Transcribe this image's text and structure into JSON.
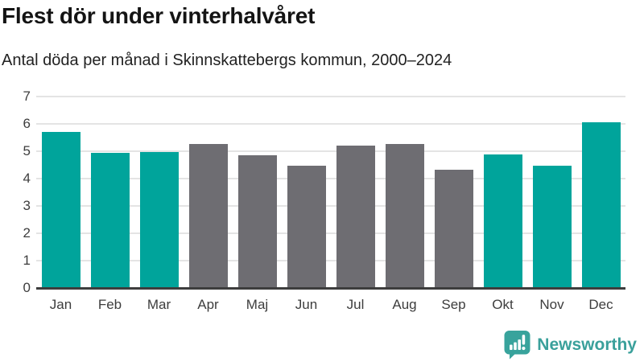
{
  "chart_data": {
    "type": "bar",
    "title": "Flest dör under vinterhalvåret",
    "subtitle": "Antal döda per månad i Skinnskattebergs kommun, 2000–2024",
    "categories": [
      "Jan",
      "Feb",
      "Mar",
      "Apr",
      "Maj",
      "Jun",
      "Jul",
      "Aug",
      "Sep",
      "Okt",
      "Nov",
      "Dec"
    ],
    "values": [
      5.7,
      4.94,
      4.96,
      5.26,
      4.85,
      4.47,
      5.2,
      5.26,
      4.33,
      4.88,
      4.47,
      6.07
    ],
    "highlighted_categories": [
      "Jan",
      "Feb",
      "Mar",
      "Okt",
      "Nov",
      "Dec"
    ],
    "colors": {
      "highlight": "#00a49b",
      "default": "#6e6d72",
      "gridline": "#e4e4e4",
      "axis": "#3d3d3d"
    },
    "xlabel": "",
    "ylabel": "",
    "ylim": [
      0,
      7
    ],
    "yticks": [
      0,
      1,
      2,
      3,
      4,
      5,
      6,
      7
    ],
    "grid": true,
    "legend": false
  },
  "footer": {
    "brand": "Newsworthy",
    "brand_color": "#3aa09b"
  }
}
